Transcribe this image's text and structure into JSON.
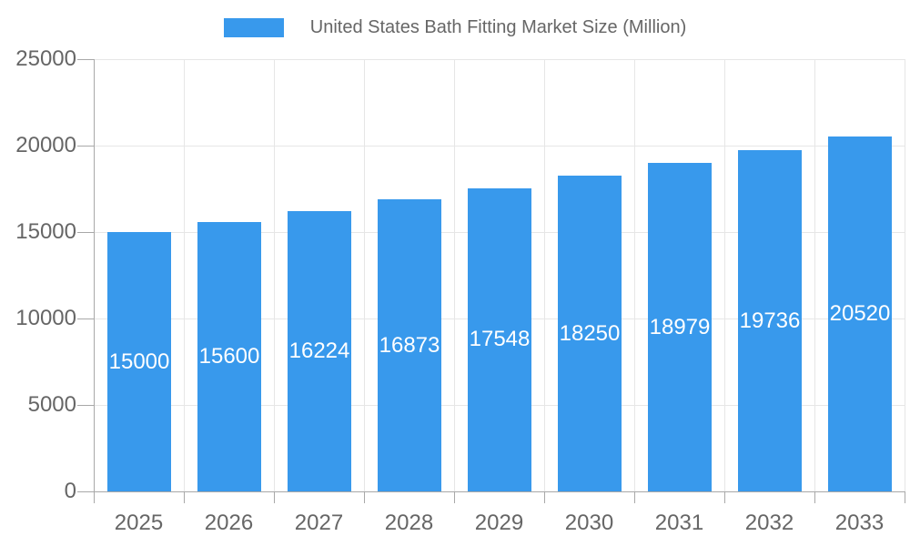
{
  "chart_data": {
    "type": "bar",
    "title": "United States Bath Fitting Market Size (Million)",
    "legend": [
      {
        "label": "United States Bath Fitting Market Size (Million)",
        "color": "#3899EC"
      }
    ],
    "legend_position": "top",
    "categories": [
      "2025",
      "2026",
      "2027",
      "2028",
      "2029",
      "2030",
      "2031",
      "2032",
      "2033"
    ],
    "values": [
      15000,
      15600,
      16224,
      16873,
      17548,
      18250,
      18979,
      19736,
      20520
    ],
    "xlabel": "",
    "ylabel": "",
    "ylim": [
      0,
      25000
    ],
    "yticks": [
      0,
      5000,
      10000,
      15000,
      20000,
      25000
    ],
    "grid": true,
    "bar_value_labels_shown": true,
    "colors": {
      "bar": "#3899EC",
      "bar_label": "#FFFFFF",
      "tick_label": "#666666",
      "grid_line": "#E6E6E6",
      "axis_line": "#A8A8A8",
      "background": "#FFFFFF"
    }
  }
}
